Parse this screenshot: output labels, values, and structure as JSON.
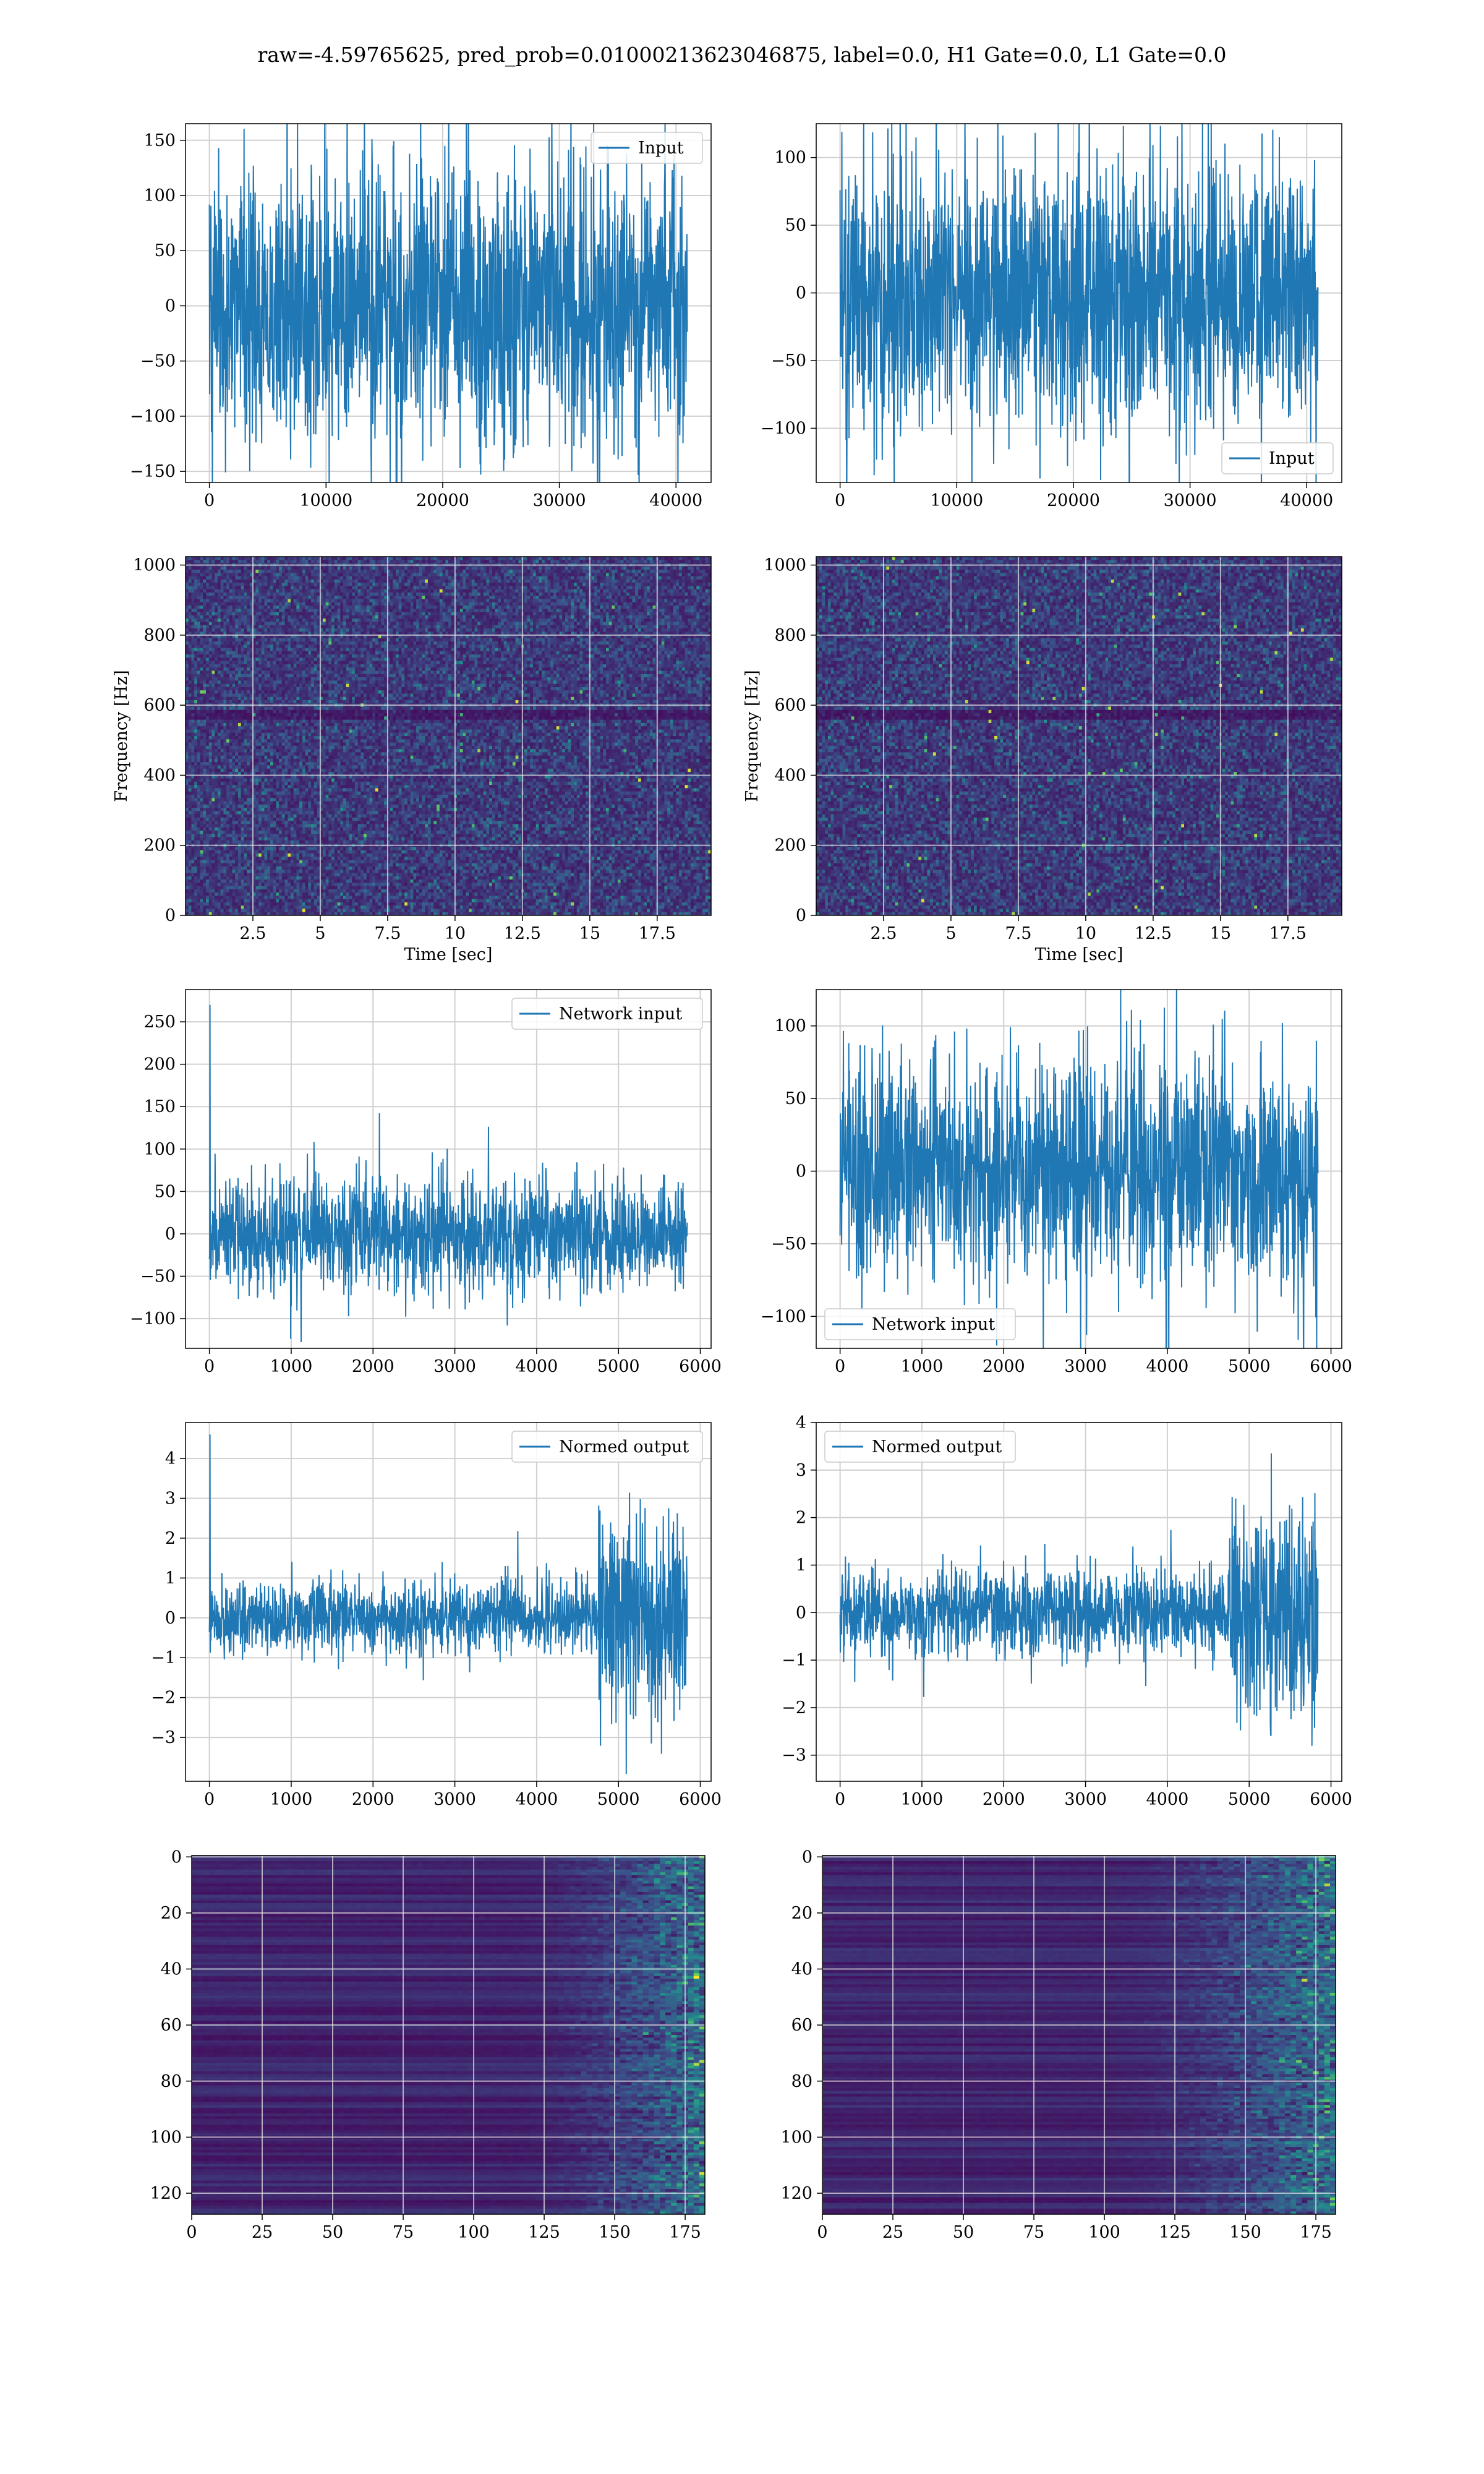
{
  "figure": {
    "title": "raw=-4.59765625, pred_prob=0.01000213623046875, label=0.0, H1 Gate=0.0, L1 Gate=0.0"
  },
  "colors": {
    "line": "#1f77b4",
    "grid": "#d0d0d0"
  },
  "chart_data": [
    {
      "id": "h1-input",
      "type": "line",
      "legend": "Input",
      "legend_loc": "upper right",
      "x_range": [
        0,
        40960
      ],
      "y_amplitude": 65,
      "xlim": [
        -2048,
        43008
      ],
      "ylim": [
        -160,
        165
      ],
      "xticks": [
        0,
        10000,
        20000,
        30000,
        40000
      ],
      "yticks": [
        -150,
        -100,
        -50,
        0,
        50,
        100,
        150
      ],
      "xlabel": "",
      "ylabel": "",
      "grid": true
    },
    {
      "id": "l1-input",
      "type": "line",
      "legend": "Input",
      "legend_loc": "lower right",
      "x_range": [
        0,
        40960
      ],
      "y_amplitude": 50,
      "xlim": [
        -2048,
        43008
      ],
      "ylim": [
        -140,
        125
      ],
      "xticks": [
        0,
        10000,
        20000,
        30000,
        40000
      ],
      "yticks": [
        -100,
        -50,
        0,
        50,
        100
      ],
      "xlabel": "",
      "ylabel": "",
      "grid": true
    },
    {
      "id": "h1-spectrogram",
      "type": "heatmap",
      "colormap": "viridis",
      "xlim": [
        0,
        19.5
      ],
      "ylim": [
        0,
        1024
      ],
      "xticks": [
        2.5,
        5.0,
        7.5,
        10.0,
        12.5,
        15.0,
        17.5
      ],
      "yticks": [
        0,
        200,
        400,
        600,
        800,
        1000
      ],
      "xlabel": "Time [sec]",
      "ylabel": "Frequency [Hz]",
      "grid": true
    },
    {
      "id": "l1-spectrogram",
      "type": "heatmap",
      "colormap": "viridis",
      "xlim": [
        0,
        19.5
      ],
      "ylim": [
        0,
        1024
      ],
      "xticks": [
        2.5,
        5.0,
        7.5,
        10.0,
        12.5,
        15.0,
        17.5
      ],
      "yticks": [
        0,
        200,
        400,
        600,
        800,
        1000
      ],
      "xlabel": "Time [sec]",
      "ylabel": "Frequency [Hz]",
      "grid": true
    },
    {
      "id": "h1-network-input",
      "type": "line",
      "legend": "Network input",
      "legend_loc": "upper right",
      "x_range": [
        0,
        5840
      ],
      "y_amplitude": 32,
      "spike": 270,
      "xlim": [
        -292,
        6132
      ],
      "ylim": [
        -135,
        288
      ],
      "xticks": [
        0,
        1000,
        2000,
        3000,
        4000,
        5000,
        6000
      ],
      "yticks": [
        -100,
        -50,
        0,
        50,
        100,
        150,
        200,
        250
      ],
      "xlabel": "",
      "ylabel": "",
      "grid": true
    },
    {
      "id": "l1-network-input",
      "type": "line",
      "legend": "Network input",
      "legend_loc": "lower left",
      "x_range": [
        0,
        5840
      ],
      "y_amplitude": 38,
      "xlim": [
        -292,
        6132
      ],
      "ylim": [
        -122,
        125
      ],
      "xticks": [
        0,
        1000,
        2000,
        3000,
        4000,
        5000,
        6000
      ],
      "yticks": [
        -100,
        -50,
        0,
        50,
        100
      ],
      "xlabel": "",
      "ylabel": "",
      "grid": true
    },
    {
      "id": "h1-normed-output",
      "type": "line",
      "legend": "Normed output",
      "legend_loc": "upper right",
      "x_range": [
        0,
        5840
      ],
      "y_amplitude": 0.45,
      "burst_start": 4750,
      "burst_amplitude": 1.2,
      "spike": 4.6,
      "xlim": [
        -292,
        6132
      ],
      "ylim": [
        -4.1,
        4.9
      ],
      "xticks": [
        0,
        1000,
        2000,
        3000,
        4000,
        5000,
        6000
      ],
      "yticks": [
        -3,
        -2,
        -1,
        0,
        1,
        2,
        3,
        4
      ],
      "xlabel": "",
      "ylabel": "",
      "grid": true
    },
    {
      "id": "l1-normed-output",
      "type": "line",
      "legend": "Normed output",
      "legend_loc": "upper left",
      "x_range": [
        0,
        5840
      ],
      "y_amplitude": 0.45,
      "burst_start": 4750,
      "burst_amplitude": 1.2,
      "xlim": [
        -292,
        6132
      ],
      "ylim": [
        -3.55,
        4.0
      ],
      "xticks": [
        0,
        1000,
        2000,
        3000,
        4000,
        5000,
        6000
      ],
      "yticks": [
        -3,
        -2,
        -1,
        0,
        1,
        2,
        3,
        4
      ],
      "xlabel": "",
      "ylabel": "",
      "grid": true
    },
    {
      "id": "h1-feature-map",
      "type": "heatmap",
      "colormap": "viridis",
      "xlim": [
        0,
        182
      ],
      "ylim": [
        127.5,
        -0.5
      ],
      "y_inverted": true,
      "active_from_col": 110,
      "xticks": [
        0,
        25,
        50,
        75,
        100,
        125,
        150,
        175
      ],
      "yticks": [
        0,
        20,
        40,
        60,
        80,
        100,
        120
      ],
      "xlabel": "",
      "ylabel": "",
      "grid": true
    },
    {
      "id": "l1-feature-map",
      "type": "heatmap",
      "colormap": "viridis",
      "xlim": [
        0,
        182
      ],
      "ylim": [
        127.5,
        -0.5
      ],
      "y_inverted": true,
      "active_from_col": 95,
      "xticks": [
        0,
        25,
        50,
        75,
        100,
        125,
        150,
        175
      ],
      "yticks": [
        0,
        20,
        40,
        60,
        80,
        100,
        120
      ],
      "xlabel": "",
      "ylabel": "",
      "grid": true
    }
  ]
}
